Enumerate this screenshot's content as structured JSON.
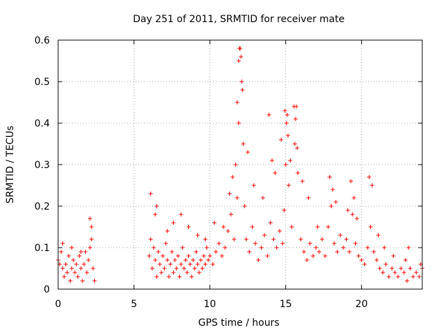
{
  "chart_data": {
    "type": "scatter",
    "title": "Day 251 of 2011, SRMTID for receiver mate",
    "xlabel": "GPS time / hours",
    "ylabel": "SRMTID / TECUs",
    "xlim": [
      0,
      24
    ],
    "ylim": [
      0,
      0.6
    ],
    "xticks": [
      0,
      5,
      10,
      15,
      20
    ],
    "xtick_labels": [
      "0",
      "5",
      "10",
      "15",
      "20"
    ],
    "yticks": [
      0,
      0.1,
      0.2,
      0.3,
      0.4,
      0.5,
      0.6
    ],
    "ytick_labels": [
      "0",
      "0.1",
      "0.2",
      "0.3",
      "0.4",
      "0.5",
      "0.6"
    ],
    "grid": true,
    "marker": "plus",
    "color": "#ff0000",
    "series": [
      {
        "name": "SRMTID",
        "x": [
          0.0,
          0.1,
          0.2,
          0.3,
          0.4,
          0.5,
          0.6,
          0.7,
          0.8,
          0.9,
          1.0,
          1.1,
          1.2,
          1.3,
          1.4,
          1.5,
          1.6,
          1.7,
          1.8,
          1.9,
          2.0,
          2.1,
          2.2,
          2.3,
          2.4,
          6.0,
          6.1,
          6.2,
          6.3,
          6.4,
          6.5,
          6.6,
          6.7,
          6.8,
          6.9,
          7.0,
          7.1,
          7.2,
          7.3,
          7.4,
          7.5,
          7.6,
          7.7,
          7.8,
          7.9,
          8.0,
          8.1,
          8.2,
          8.3,
          8.4,
          8.5,
          8.6,
          8.7,
          8.8,
          8.9,
          9.0,
          9.1,
          9.2,
          9.3,
          9.4,
          9.5,
          9.6,
          9.7,
          9.8,
          9.9,
          10.0,
          10.2,
          10.4,
          10.6,
          10.8,
          11.0,
          11.2,
          11.4,
          11.6,
          11.8,
          11.9,
          12.0,
          12.1,
          12.2,
          12.3,
          12.4,
          12.6,
          12.8,
          13.0,
          13.2,
          13.4,
          13.6,
          13.8,
          14.0,
          14.2,
          14.4,
          14.6,
          14.8,
          14.9,
          15.0,
          15.1,
          15.2,
          15.4,
          15.6,
          15.7,
          15.8,
          16.0,
          16.2,
          16.4,
          16.6,
          16.8,
          17.0,
          17.2,
          17.4,
          17.6,
          17.8,
          18.0,
          18.2,
          18.4,
          18.6,
          18.8,
          19.0,
          19.2,
          19.4,
          19.6,
          19.8,
          20.0,
          20.2,
          20.4,
          20.6,
          20.8,
          21.0,
          21.2,
          21.4,
          21.6,
          21.8,
          22.0,
          22.2,
          22.4,
          22.6,
          22.8,
          23.0,
          23.2,
          23.4,
          23.6,
          23.8,
          24.0,
          0.3,
          0.9,
          1.5,
          2.1,
          2.2,
          6.1,
          6.4,
          6.5,
          7.2,
          7.6,
          8.1,
          8.6,
          9.2,
          9.7,
          10.3,
          10.9,
          11.3,
          11.5,
          11.7,
          11.8,
          11.9,
          11.95,
          12.05,
          12.15,
          12.5,
          12.9,
          13.5,
          13.9,
          14.1,
          14.3,
          14.7,
          14.95,
          15.05,
          15.15,
          15.3,
          15.55,
          15.65,
          15.75,
          16.1,
          16.5,
          17.1,
          17.9,
          18.1,
          18.3,
          19.1,
          19.3,
          19.5,
          19.7,
          20.5,
          20.7,
          21.1,
          21.5,
          22.1,
          22.9,
          23.1,
          23.9
        ],
        "y": [
          0.07,
          0.06,
          0.09,
          0.05,
          0.03,
          0.06,
          0.04,
          0.08,
          0.02,
          0.05,
          0.07,
          0.04,
          0.06,
          0.03,
          0.08,
          0.05,
          0.02,
          0.06,
          0.09,
          0.04,
          0.07,
          0.1,
          0.15,
          0.05,
          0.02,
          0.08,
          0.12,
          0.05,
          0.1,
          0.07,
          0.03,
          0.09,
          0.06,
          0.04,
          0.08,
          0.05,
          0.11,
          0.07,
          0.03,
          0.06,
          0.09,
          0.04,
          0.07,
          0.05,
          0.08,
          0.03,
          0.06,
          0.1,
          0.05,
          0.07,
          0.04,
          0.08,
          0.06,
          0.03,
          0.07,
          0.05,
          0.09,
          0.06,
          0.04,
          0.07,
          0.05,
          0.08,
          0.06,
          0.1,
          0.07,
          0.08,
          0.06,
          0.09,
          0.11,
          0.08,
          0.1,
          0.14,
          0.18,
          0.12,
          0.22,
          0.4,
          0.58,
          0.5,
          0.35,
          0.2,
          0.12,
          0.09,
          0.15,
          0.11,
          0.07,
          0.1,
          0.13,
          0.08,
          0.16,
          0.12,
          0.1,
          0.14,
          0.11,
          0.19,
          0.3,
          0.42,
          0.25,
          0.15,
          0.35,
          0.44,
          0.28,
          0.12,
          0.09,
          0.07,
          0.11,
          0.08,
          0.1,
          0.09,
          0.12,
          0.08,
          0.15,
          0.2,
          0.11,
          0.09,
          0.13,
          0.1,
          0.12,
          0.09,
          0.18,
          0.11,
          0.08,
          0.07,
          0.06,
          0.1,
          0.15,
          0.09,
          0.07,
          0.05,
          0.04,
          0.06,
          0.03,
          0.05,
          0.04,
          0.03,
          0.05,
          0.04,
          0.02,
          0.05,
          0.03,
          0.04,
          0.03,
          0.05,
          0.11,
          0.1,
          0.09,
          0.17,
          0.12,
          0.23,
          0.18,
          0.2,
          0.14,
          0.16,
          0.18,
          0.15,
          0.13,
          0.12,
          0.16,
          0.15,
          0.23,
          0.27,
          0.3,
          0.45,
          0.55,
          0.58,
          0.56,
          0.48,
          0.33,
          0.25,
          0.22,
          0.42,
          0.31,
          0.28,
          0.36,
          0.43,
          0.4,
          0.37,
          0.31,
          0.44,
          0.41,
          0.34,
          0.26,
          0.22,
          0.15,
          0.27,
          0.24,
          0.21,
          0.19,
          0.26,
          0.22,
          0.17,
          0.27,
          0.25,
          0.13,
          0.1,
          0.08,
          0.07,
          0.1,
          0.06
        ]
      }
    ]
  }
}
